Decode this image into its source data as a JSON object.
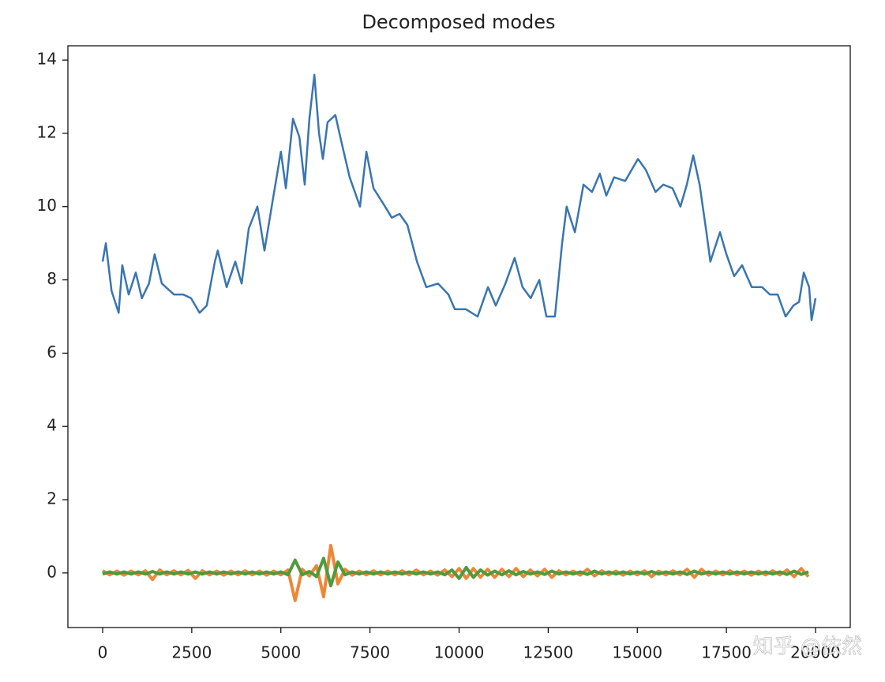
{
  "chart_data": {
    "type": "line",
    "title": "Decomposed modes",
    "watermark": "知乎 @依然",
    "xlim": [
      -975,
      20975
    ],
    "xticks": [
      0,
      2500,
      5000,
      7500,
      10000,
      12500,
      15000,
      17500,
      20000
    ],
    "ylim": [
      -1.49,
      14.39
    ],
    "yticks": [
      0,
      2,
      4,
      6,
      8,
      10,
      12,
      14
    ],
    "series": [
      {
        "color": "#3a75b0",
        "width": 2.5,
        "x": [
          0,
          90,
          250,
          450,
          550,
          730,
          930,
          1100,
          1300,
          1460,
          1660,
          2000,
          2260,
          2480,
          2720,
          2920,
          3150,
          3230,
          3480,
          3720,
          3900,
          4100,
          4340,
          4540,
          4760,
          5000,
          5140,
          5340,
          5520,
          5670,
          5800,
          5940,
          6070,
          6180,
          6310,
          6530,
          6690,
          6930,
          7220,
          7400,
          7600,
          7860,
          8110,
          8330,
          8550,
          8820,
          9080,
          9410,
          9700,
          9880,
          10190,
          10520,
          10810,
          11030,
          11300,
          11560,
          11780,
          12010,
          12250,
          12450,
          12690,
          12890,
          13020,
          13250,
          13490,
          13730,
          13950,
          14130,
          14350,
          14660,
          15020,
          15240,
          15510,
          15730,
          15990,
          16210,
          16390,
          16570,
          16750,
          16940,
          17050,
          17320,
          17500,
          17720,
          17940,
          18210,
          18500,
          18720,
          18940,
          19160,
          19380,
          19540,
          19670,
          19820,
          19890,
          20000
        ],
        "values": [
          8.5,
          9.0,
          7.7,
          7.1,
          8.4,
          7.6,
          8.2,
          7.5,
          7.9,
          8.7,
          7.9,
          7.6,
          7.6,
          7.5,
          7.1,
          7.3,
          8.5,
          8.8,
          7.8,
          8.5,
          7.9,
          9.4,
          10.0,
          8.8,
          10.1,
          11.5,
          10.5,
          12.4,
          11.9,
          10.6,
          12.4,
          13.6,
          12.0,
          11.3,
          12.3,
          12.5,
          11.8,
          10.8,
          10.0,
          11.5,
          10.5,
          10.1,
          9.7,
          9.8,
          9.5,
          8.5,
          7.8,
          7.9,
          7.6,
          7.2,
          7.2,
          7.0,
          7.8,
          7.3,
          7.9,
          8.6,
          7.8,
          7.5,
          8.0,
          7.0,
          7.0,
          9.0,
          10.0,
          9.3,
          10.6,
          10.4,
          10.9,
          10.3,
          10.8,
          10.7,
          11.3,
          11.0,
          10.4,
          10.6,
          10.5,
          10.0,
          10.6,
          11.4,
          10.6,
          9.3,
          8.5,
          9.3,
          8.7,
          8.1,
          8.4,
          7.8,
          7.8,
          7.6,
          7.6,
          7.0,
          7.3,
          7.4,
          8.2,
          7.8,
          6.9,
          7.5
        ]
      },
      {
        "color": "#ef8636",
        "width": 4,
        "x": [
          0,
          200,
          400,
          600,
          800,
          1000,
          1200,
          1400,
          1600,
          1800,
          2000,
          2200,
          2400,
          2600,
          2800,
          3000,
          3200,
          3400,
          3600,
          3800,
          4000,
          4200,
          4400,
          4600,
          4800,
          5000,
          5200,
          5400,
          5600,
          5800,
          6000,
          6200,
          6400,
          6600,
          6800,
          7000,
          7200,
          7400,
          7600,
          7800,
          8000,
          8200,
          8400,
          8600,
          8800,
          9000,
          9200,
          9400,
          9600,
          9800,
          10000,
          10200,
          10400,
          10600,
          10800,
          11000,
          11200,
          11400,
          11600,
          11800,
          12000,
          12200,
          12400,
          12600,
          12800,
          13000,
          13200,
          13400,
          13600,
          13800,
          14000,
          14200,
          14400,
          14600,
          14800,
          15000,
          15200,
          15400,
          15600,
          15800,
          16000,
          16200,
          16400,
          16600,
          16800,
          17000,
          17200,
          17400,
          17600,
          17800,
          18000,
          18200,
          18400,
          18600,
          18800,
          19000,
          19200,
          19400,
          19600,
          19800
        ],
        "values": [
          0.06,
          -0.05,
          0.05,
          -0.06,
          0.05,
          -0.05,
          0.06,
          -0.18,
          0.08,
          -0.05,
          0.06,
          -0.05,
          0.07,
          -0.15,
          0.06,
          -0.05,
          0.05,
          -0.06,
          0.05,
          -0.05,
          0.06,
          -0.05,
          0.05,
          -0.06,
          0.05,
          -0.05,
          0.08,
          -0.75,
          0.1,
          -0.08,
          0.2,
          -0.65,
          0.75,
          -0.3,
          0.1,
          -0.06,
          0.05,
          -0.05,
          0.06,
          -0.05,
          0.05,
          -0.05,
          0.06,
          -0.05,
          0.08,
          -0.05,
          0.05,
          -0.06,
          0.08,
          -0.1,
          0.12,
          -0.15,
          0.12,
          -0.12,
          0.1,
          -0.12,
          0.1,
          -0.1,
          0.12,
          -0.1,
          0.08,
          -0.08,
          0.1,
          -0.12,
          0.06,
          -0.05,
          0.05,
          -0.06,
          0.1,
          -0.08,
          0.06,
          -0.05,
          0.05,
          -0.06,
          0.05,
          -0.05,
          0.06,
          -0.1,
          0.05,
          -0.05,
          0.06,
          -0.05,
          0.1,
          -0.12,
          0.1,
          -0.06,
          0.05,
          -0.05,
          0.06,
          -0.05,
          0.05,
          -0.06,
          0.05,
          -0.05,
          0.06,
          -0.05,
          0.08,
          -0.1,
          0.12,
          -0.1
        ]
      },
      {
        "color": "#4f9a3c",
        "width": 4,
        "x": [
          0,
          200,
          400,
          600,
          800,
          1000,
          1200,
          1400,
          1600,
          1800,
          2000,
          2200,
          2400,
          2600,
          2800,
          3000,
          3200,
          3400,
          3600,
          3800,
          4000,
          4200,
          4400,
          4600,
          4800,
          5000,
          5200,
          5400,
          5600,
          5800,
          6000,
          6200,
          6400,
          6600,
          6800,
          7000,
          7200,
          7400,
          7600,
          7800,
          8000,
          8200,
          8400,
          8600,
          8800,
          9000,
          9200,
          9400,
          9600,
          9800,
          10000,
          10200,
          10400,
          10600,
          10800,
          11000,
          11200,
          11400,
          11600,
          11800,
          12000,
          12200,
          12400,
          12600,
          12800,
          13000,
          13200,
          13400,
          13600,
          13800,
          14000,
          14200,
          14400,
          14600,
          14800,
          15000,
          15200,
          15400,
          15600,
          15800,
          16000,
          16200,
          16400,
          16600,
          16800,
          17000,
          17200,
          17400,
          17600,
          17800,
          18000,
          18200,
          18400,
          18600,
          18800,
          19000,
          19200,
          19400,
          19600,
          19800
        ],
        "values": [
          -0.03,
          0.03,
          -0.03,
          0.03,
          -0.03,
          0.03,
          -0.03,
          0.04,
          -0.03,
          0.03,
          -0.03,
          0.03,
          -0.03,
          0.03,
          -0.03,
          0.03,
          -0.03,
          0.03,
          -0.03,
          0.03,
          -0.03,
          0.03,
          -0.03,
          0.03,
          -0.03,
          0.03,
          -0.05,
          0.35,
          -0.05,
          0.04,
          -0.1,
          0.4,
          -0.35,
          0.3,
          -0.05,
          0.03,
          -0.03,
          0.03,
          -0.03,
          0.03,
          -0.03,
          0.03,
          -0.03,
          0.03,
          -0.03,
          0.03,
          -0.03,
          0.03,
          -0.05,
          0.08,
          -0.15,
          0.15,
          -0.12,
          0.08,
          -0.06,
          0.05,
          -0.05,
          0.06,
          -0.05,
          0.04,
          -0.03,
          0.03,
          -0.04,
          0.05,
          -0.03,
          0.03,
          -0.03,
          0.03,
          -0.04,
          0.05,
          -0.03,
          0.03,
          -0.03,
          0.03,
          -0.03,
          0.03,
          -0.03,
          0.04,
          -0.03,
          0.03,
          -0.03,
          0.03,
          -0.04,
          0.05,
          -0.03,
          0.03,
          -0.03,
          0.03,
          -0.03,
          0.03,
          -0.03,
          0.03,
          -0.03,
          0.03,
          -0.03,
          0.03,
          -0.04,
          0.05,
          -0.04,
          0.03
        ]
      }
    ]
  }
}
